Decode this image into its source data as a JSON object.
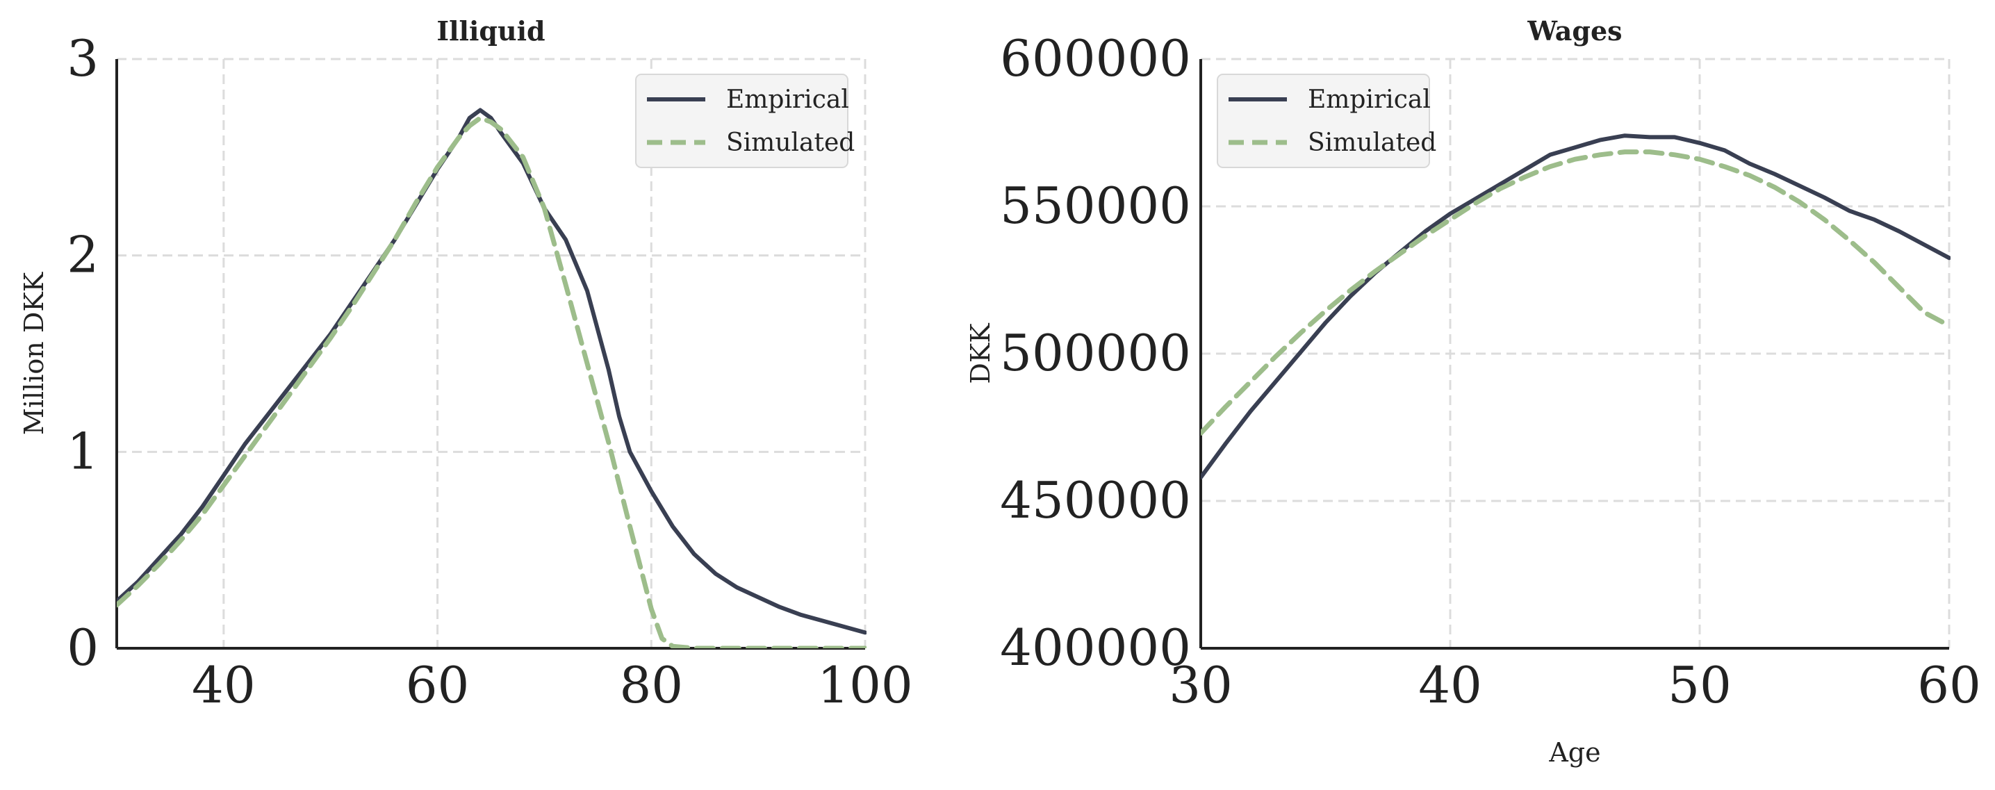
{
  "colors": {
    "empirical": "#393f52",
    "simulated": "#9dbd8b"
  },
  "chart_data": [
    {
      "type": "line",
      "title": "Illiquid",
      "xlabel": "",
      "ylabel": "Million DKK",
      "xlim": [
        30,
        100
      ],
      "ylim": [
        0,
        3
      ],
      "xticks": [
        40,
        60,
        80,
        100
      ],
      "yticks": [
        0,
        1,
        2,
        3
      ],
      "xtick_labels": [
        "40",
        "60",
        "80",
        "100"
      ],
      "ytick_labels": [
        "0",
        "1",
        "2",
        "3"
      ],
      "grid": true,
      "legend_position": "top-right",
      "series": [
        {
          "name": "Empirical",
          "style": "solid",
          "x": [
            30,
            32,
            34,
            36,
            38,
            40,
            42,
            44,
            46,
            48,
            50,
            52,
            54,
            56,
            58,
            60,
            62,
            63,
            64,
            65,
            66,
            68,
            70,
            72,
            74,
            76,
            77,
            78,
            80,
            82,
            84,
            86,
            88,
            90,
            92,
            94,
            96,
            98,
            100
          ],
          "y": [
            0.24,
            0.34,
            0.46,
            0.58,
            0.72,
            0.88,
            1.04,
            1.18,
            1.32,
            1.46,
            1.6,
            1.76,
            1.92,
            2.08,
            2.26,
            2.44,
            2.6,
            2.7,
            2.74,
            2.7,
            2.62,
            2.47,
            2.24,
            2.08,
            1.82,
            1.42,
            1.18,
            1.0,
            0.8,
            0.62,
            0.48,
            0.38,
            0.31,
            0.26,
            0.21,
            0.17,
            0.14,
            0.11,
            0.08
          ]
        },
        {
          "name": "Simulated",
          "style": "dashed",
          "x": [
            30,
            32,
            34,
            36,
            38,
            40,
            42,
            44,
            46,
            48,
            50,
            52,
            54,
            56,
            58,
            60,
            62,
            63,
            64,
            65,
            66,
            68,
            70,
            72,
            74,
            76,
            78,
            80,
            81,
            82,
            84,
            86,
            88,
            90,
            92,
            94,
            96,
            98,
            100
          ],
          "y": [
            0.22,
            0.32,
            0.43,
            0.55,
            0.68,
            0.83,
            0.98,
            1.13,
            1.28,
            1.43,
            1.58,
            1.74,
            1.91,
            2.08,
            2.27,
            2.45,
            2.6,
            2.66,
            2.7,
            2.68,
            2.64,
            2.5,
            2.24,
            1.85,
            1.45,
            1.05,
            0.62,
            0.2,
            0.05,
            0.01,
            0.0,
            0.0,
            0.0,
            0.0,
            0.0,
            0.0,
            0.0,
            0.0,
            0.0
          ]
        }
      ]
    },
    {
      "type": "line",
      "title": "Wages",
      "xlabel": "Age",
      "ylabel": "DKK",
      "xlim": [
        30,
        60
      ],
      "ylim": [
        400000,
        600000
      ],
      "xticks": [
        30,
        40,
        50,
        60
      ],
      "yticks": [
        400000,
        450000,
        500000,
        550000,
        600000
      ],
      "xtick_labels": [
        "30",
        "40",
        "50",
        "60"
      ],
      "ytick_labels": [
        "400000",
        "450000",
        "500000",
        "550000",
        "600000"
      ],
      "grid": true,
      "legend_position": "top-left",
      "series": [
        {
          "name": "Empirical",
          "style": "solid",
          "x": [
            30,
            31,
            32,
            33,
            34,
            35,
            36,
            37,
            38,
            39,
            40,
            41,
            42,
            43,
            44,
            45,
            46,
            47,
            48,
            49,
            50,
            51,
            52,
            53,
            54,
            55,
            56,
            57,
            58,
            59,
            60
          ],
          "y": [
            458000,
            469500,
            480500,
            490500,
            500500,
            510500,
            519500,
            527500,
            534500,
            541500,
            547500,
            552500,
            557500,
            562500,
            567500,
            570000,
            572500,
            574000,
            573500,
            573500,
            571500,
            569000,
            564500,
            561000,
            557000,
            553000,
            548500,
            545500,
            541500,
            537000,
            532500
          ]
        },
        {
          "name": "Simulated",
          "style": "dashed",
          "x": [
            30,
            31,
            32,
            33,
            34,
            35,
            36,
            37,
            38,
            39,
            40,
            41,
            42,
            43,
            44,
            45,
            46,
            47,
            48,
            49,
            50,
            51,
            52,
            53,
            54,
            55,
            56,
            57,
            58,
            59,
            60
          ],
          "y": [
            473000,
            482000,
            490500,
            499000,
            507000,
            514500,
            521500,
            528000,
            534000,
            540000,
            545500,
            551000,
            556000,
            560000,
            563500,
            566000,
            567500,
            568500,
            568500,
            567500,
            566000,
            563500,
            560500,
            556500,
            551500,
            545500,
            538500,
            531000,
            522500,
            514000,
            509500
          ]
        }
      ]
    }
  ]
}
